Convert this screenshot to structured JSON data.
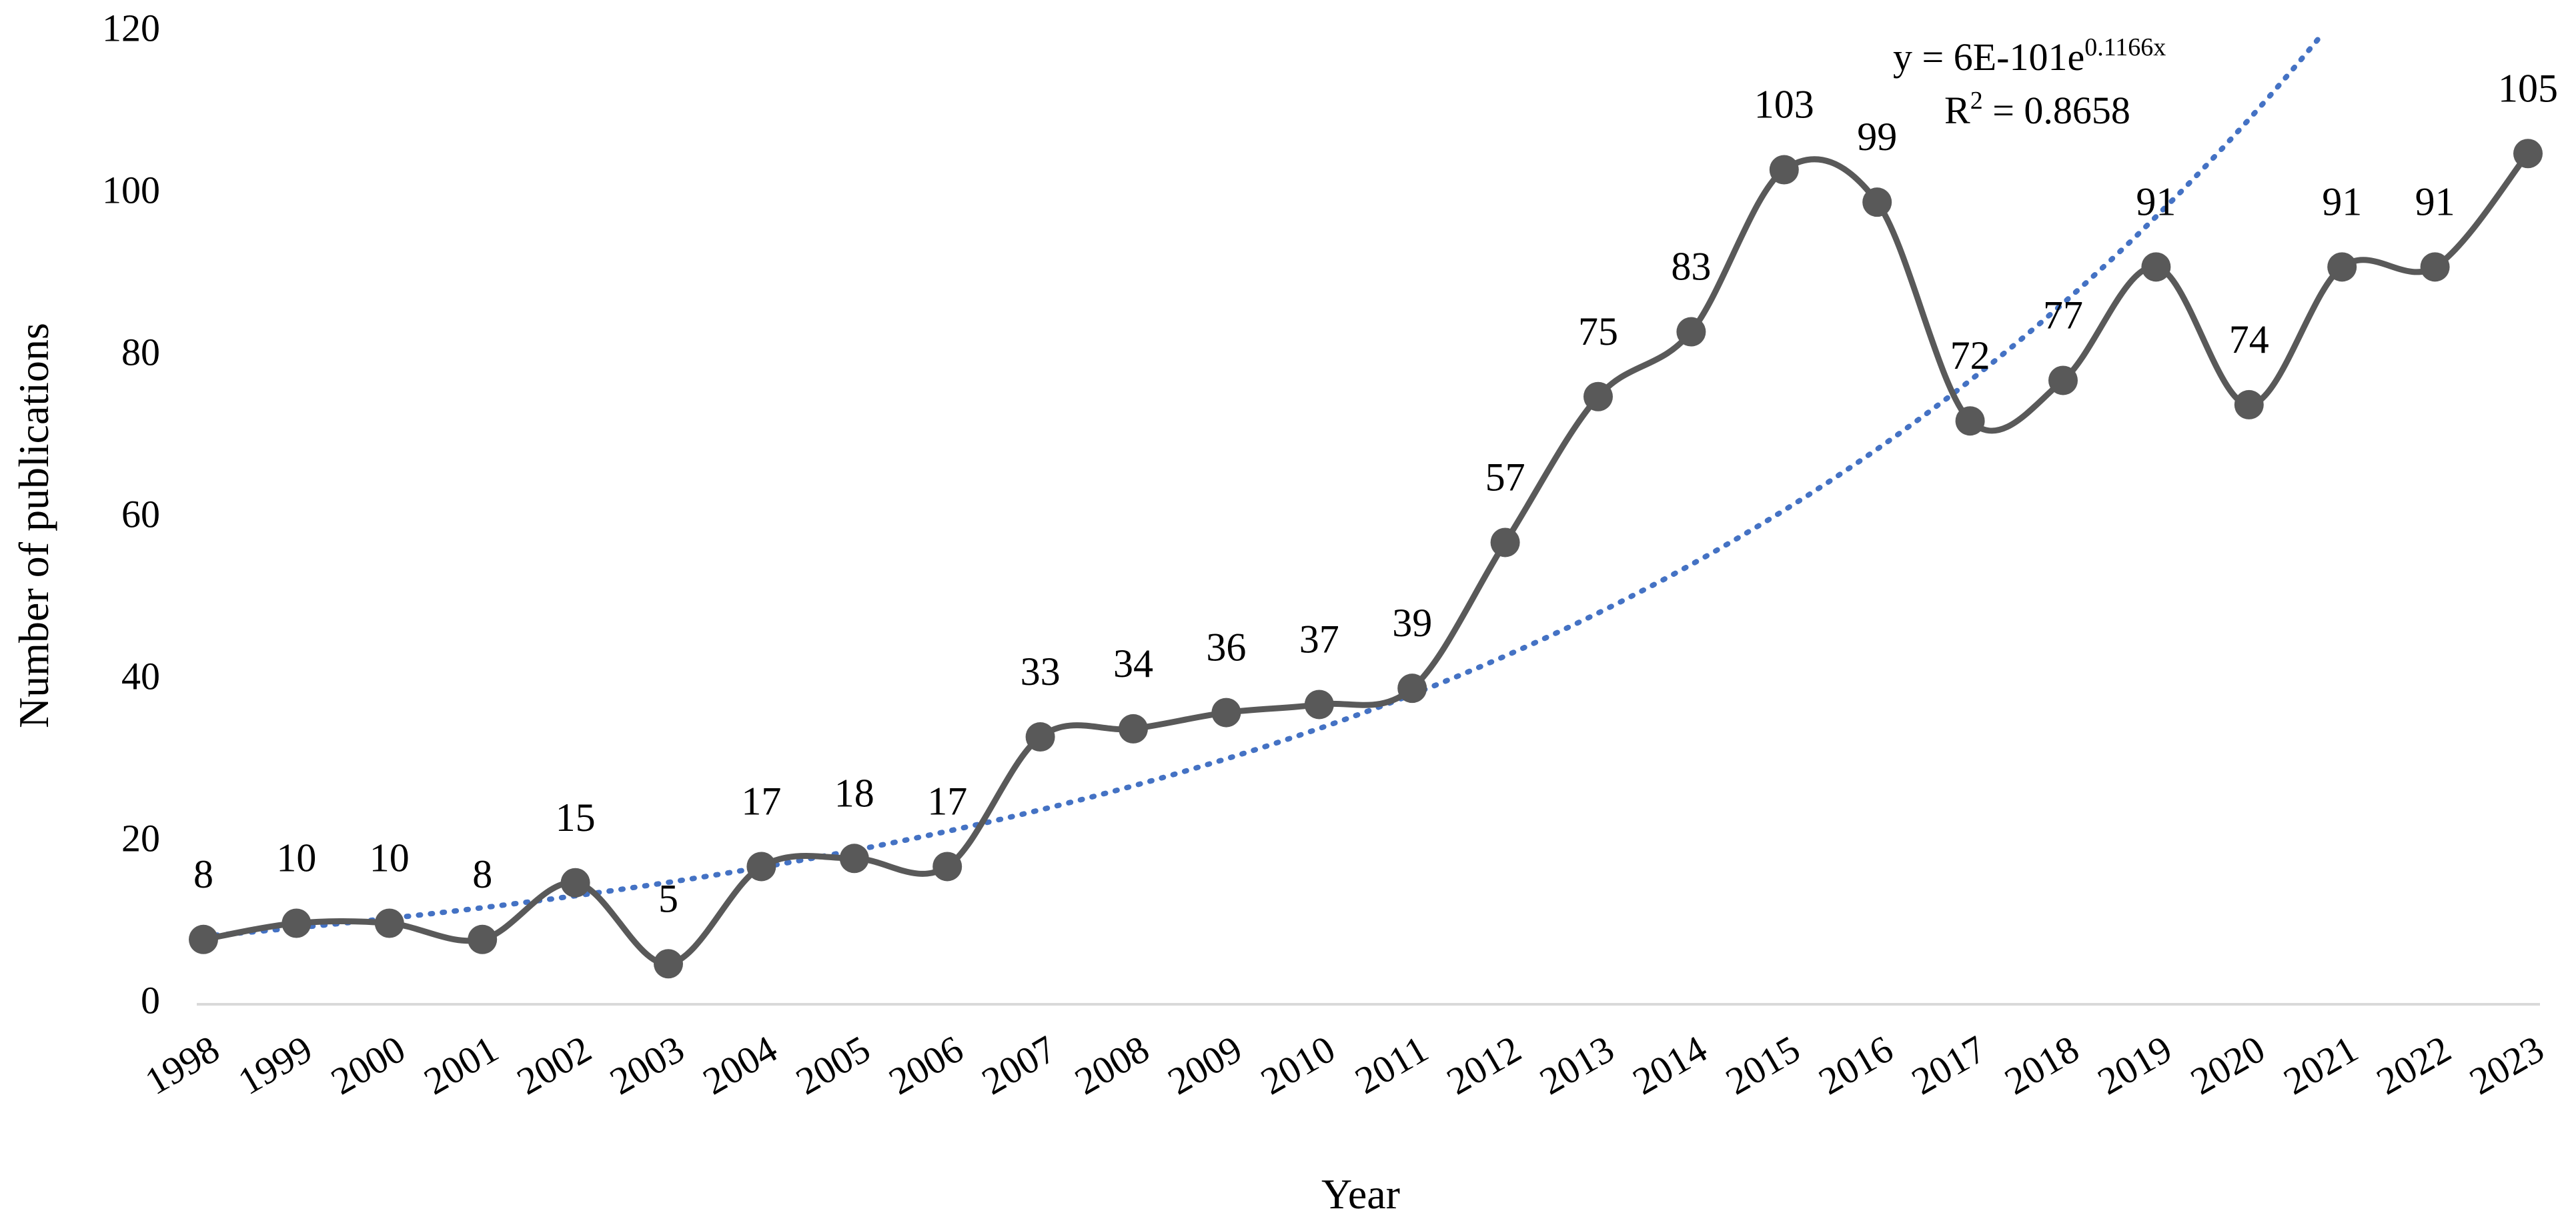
{
  "chart_data": {
    "type": "line",
    "categories": [
      "1998",
      "1999",
      "2000",
      "2001",
      "2002",
      "2003",
      "2004",
      "2005",
      "2006",
      "2007",
      "2008",
      "2009",
      "2010",
      "2011",
      "2012",
      "2013",
      "2014",
      "2015",
      "2016",
      "2017",
      "2018",
      "2019",
      "2020",
      "2021",
      "2022",
      "2023"
    ],
    "series": [
      {
        "values": [
          8,
          10,
          10,
          8,
          15,
          5,
          17,
          18,
          17,
          33,
          34,
          36,
          37,
          39,
          57,
          75,
          83,
          103,
          99,
          72,
          77,
          91,
          74,
          91,
          91,
          105
        ]
      }
    ],
    "data_labels": [
      "8",
      "10",
      "10",
      "8",
      "15",
      "5",
      "17",
      "18",
      "17",
      "33",
      "34",
      "36",
      "37",
      "39",
      "57",
      "75",
      "83",
      "103",
      "99",
      "72",
      "77",
      "91",
      "74",
      "91",
      "91",
      "105"
    ],
    "trendline": {
      "type": "exponential",
      "equation_prefix": "y = 6E-101e",
      "equation_exponent": "0.1166x",
      "r2_prefix": "R",
      "r2_sup": "2",
      "r2_suffix": " = 0.8658"
    },
    "xlabel": "Year",
    "ylabel": "Number of publications",
    "ylim": [
      0,
      120
    ],
    "yticks": [
      "0",
      "20",
      "40",
      "60",
      "80",
      "100",
      "120"
    ],
    "grid": false,
    "colors": {
      "series": "#595959",
      "trendline": "#4472C4",
      "axis": "#d9d9d9"
    }
  }
}
